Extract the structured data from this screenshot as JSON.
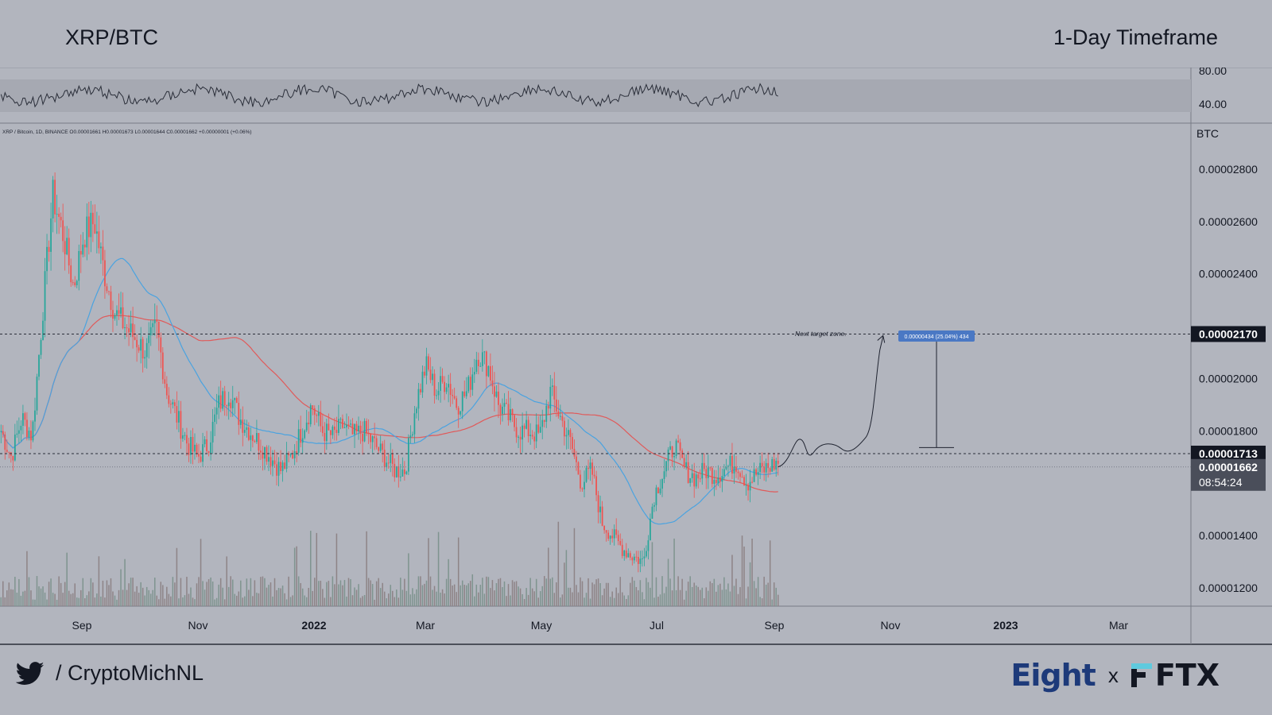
{
  "header": {
    "symbol": "XRP/BTC",
    "timeframe": "1-Day Timeframe"
  },
  "chart_data": {
    "type": "candlestick",
    "title": "XRP/BTC",
    "legend_text": "XRP / Bitcoin, 1D, BINANCE  O0.00001661  H0.00001673  L0.00001644  C0.00001662  +0.00000001 (+0.06%)",
    "currency_label": "BTC",
    "x_axis_ticks": [
      "Sep",
      "Nov",
      "2022",
      "Mar",
      "May",
      "Jul",
      "Sep",
      "Nov",
      "2023",
      "Mar"
    ],
    "y_axis_ticks": [
      "0.00002800",
      "0.00002600",
      "0.00002400",
      "0.00002000",
      "0.00001800",
      "0.00001400",
      "0.00001200"
    ],
    "ylim": [
      1.13e-05,
      2.97e-05
    ],
    "rsi_ticks": [
      "80.00",
      "40.00"
    ],
    "price_labels": {
      "target": {
        "value": "0.00002170",
        "price": 2.17e-05
      },
      "resistance": {
        "value": "0.00001713",
        "price": 1.713e-05
      },
      "last": {
        "value": "0.00001662",
        "price": 1.662e-05,
        "countdown": "08:54:24"
      }
    },
    "annotations": {
      "target_zone_label": "Next target zone.",
      "measure_label": "0.00000434 (25.04%) 434"
    },
    "close_series": [
      1.8e-05,
      1.7e-05,
      1.85e-05,
      1.78e-05,
      2.25e-05,
      2.7e-05,
      2.55e-05,
      2.35e-05,
      2.55e-05,
      2.6e-05,
      2.4e-05,
      2.25e-05,
      2.2e-05,
      2.15e-05,
      2.1e-05,
      2.2e-05,
      1.95e-05,
      1.85e-05,
      1.75e-05,
      1.7e-05,
      1.75e-05,
      1.9e-05,
      1.95e-05,
      1.85e-05,
      1.8e-05,
      1.75e-05,
      1.7e-05,
      1.65e-05,
      1.7e-05,
      1.8e-05,
      1.9e-05,
      1.8e-05,
      1.78e-05,
      1.82e-05,
      1.78e-05,
      1.8e-05,
      1.75e-05,
      1.7e-05,
      1.65e-05,
      1.65e-05,
      1.9e-05,
      2.05e-05,
      1.95e-05,
      2e-05,
      1.9e-05,
      1.95e-05,
      2.1e-05,
      2.05e-05,
      1.9e-05,
      1.85e-05,
      1.8e-05,
      1.8e-05,
      1.78e-05,
      1.95e-05,
      1.85e-05,
      1.75e-05,
      1.6e-05,
      1.65e-05,
      1.45e-05,
      1.4e-05,
      1.35e-05,
      1.32e-05,
      1.3e-05,
      1.55e-05,
      1.65e-05,
      1.75e-05,
      1.65e-05,
      1.62e-05,
      1.65e-05,
      1.63e-05,
      1.66e-05,
      1.68e-05,
      1.6e-05,
      1.64e-05,
      1.66e-05,
      1.68e-05
    ]
  },
  "footer": {
    "handle": "/ CryptoMichNL",
    "partner_a": "Eight",
    "separator": "x",
    "partner_b": "FTX"
  },
  "colors": {
    "background": "#b2b5be",
    "up": "#26a69a",
    "down": "#ef5350",
    "ma_fast": "#4aa3e0",
    "ma_slow": "#e05a5a"
  }
}
